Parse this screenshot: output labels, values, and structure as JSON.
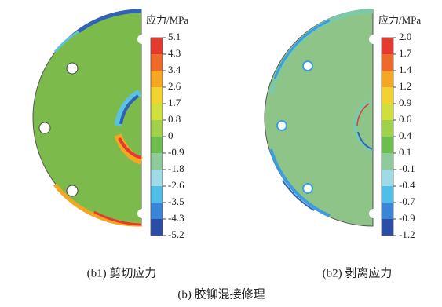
{
  "panels": [
    {
      "legend_title": "应力/MPa",
      "legend_labels": [
        "5.1",
        "4.3",
        "3.4",
        "2.6",
        "1.7",
        "0.8",
        "0",
        "-0.9",
        "-1.8",
        "-2.6",
        "-3.5",
        "-4.3",
        "-5.2"
      ],
      "caption": "(b1) 剪切应力"
    },
    {
      "legend_title": "应力/MPa",
      "legend_labels": [
        "2.0",
        "1.7",
        "1.4",
        "1.2",
        "0.9",
        "0.6",
        "0.4",
        "0.1",
        "-0.1",
        "-0.4",
        "-0.7",
        "-0.9",
        "-1.2"
      ],
      "caption": "(b2) 剥离应力"
    }
  ],
  "caption": "(b) 胶铆混接修理"
}
